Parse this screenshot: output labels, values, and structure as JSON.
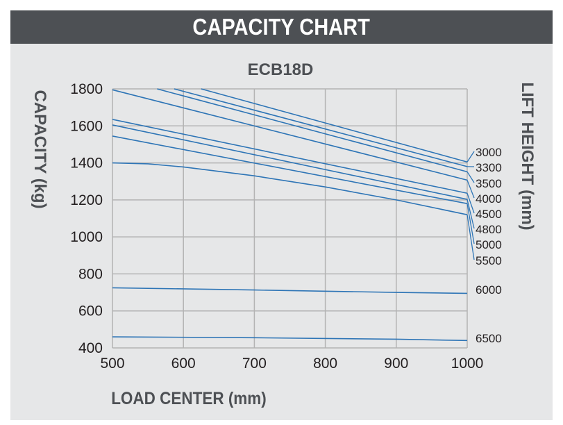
{
  "header": {
    "title": "CAPACITY CHART"
  },
  "chart_data": {
    "type": "line",
    "title": "ECB18D",
    "xlabel": "LOAD CENTER (mm)",
    "ylabel": "CAPACITY (kg)",
    "y2label": "LIFT HEIGHT (mm)",
    "xlim": [
      500,
      1000
    ],
    "ylim": [
      400,
      1800
    ],
    "xticks": [
      "500",
      "600",
      "700",
      "800",
      "900",
      "1000"
    ],
    "yticks": [
      "400",
      "600",
      "800",
      "1000",
      "1200",
      "1400",
      "1600",
      "1800"
    ],
    "grid": true,
    "line_color": "#2e75b6",
    "series": [
      {
        "name": "3000",
        "points": [
          [
            625,
            1800
          ],
          [
            1000,
            1405
          ]
        ]
      },
      {
        "name": "3300",
        "points": [
          [
            587,
            1800
          ],
          [
            1000,
            1380
          ]
        ]
      },
      {
        "name": "3500",
        "points": [
          [
            563,
            1800
          ],
          [
            1000,
            1352
          ]
        ]
      },
      {
        "name": "4000",
        "points": [
          [
            500,
            1795
          ],
          [
            1000,
            1307
          ]
        ]
      },
      {
        "name": "4500",
        "points": [
          [
            500,
            1635
          ],
          [
            1000,
            1236
          ]
        ]
      },
      {
        "name": "4800",
        "points": [
          [
            500,
            1605
          ],
          [
            1000,
            1203
          ]
        ]
      },
      {
        "name": "5000",
        "points": [
          [
            500,
            1545
          ],
          [
            1000,
            1180
          ]
        ]
      },
      {
        "name": "5500",
        "points": [
          [
            500,
            1400
          ],
          [
            550,
            1395
          ],
          [
            600,
            1378
          ],
          [
            700,
            1330
          ],
          [
            800,
            1270
          ],
          [
            900,
            1200
          ],
          [
            1000,
            1120
          ]
        ]
      },
      {
        "name": "6000",
        "points": [
          [
            500,
            725
          ],
          [
            700,
            713
          ],
          [
            900,
            700
          ],
          [
            1000,
            695
          ]
        ]
      },
      {
        "name": "6500",
        "points": [
          [
            500,
            460
          ],
          [
            700,
            455
          ],
          [
            900,
            447
          ],
          [
            1000,
            440
          ]
        ]
      }
    ]
  }
}
